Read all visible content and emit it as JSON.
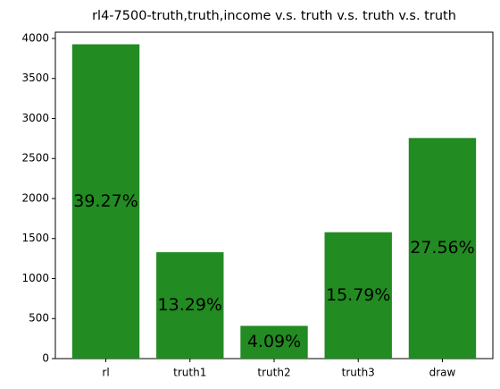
{
  "chart_data": {
    "type": "bar",
    "title": "rl4-7500-truth,truth,income v.s. truth v.s. truth v.s. truth",
    "categories": [
      "rl",
      "truth1",
      "truth2",
      "truth3",
      "draw"
    ],
    "values": [
      3927,
      1329,
      409,
      1579,
      2756
    ],
    "value_labels": [
      "39.27%",
      "13.29%",
      "4.09%",
      "15.79%",
      "27.56%"
    ],
    "color": "#228b22",
    "ylim": [
      0,
      4078
    ],
    "yticks": [
      0,
      500,
      1000,
      1500,
      2000,
      2500,
      3000,
      3500,
      4000
    ],
    "grid": false
  }
}
